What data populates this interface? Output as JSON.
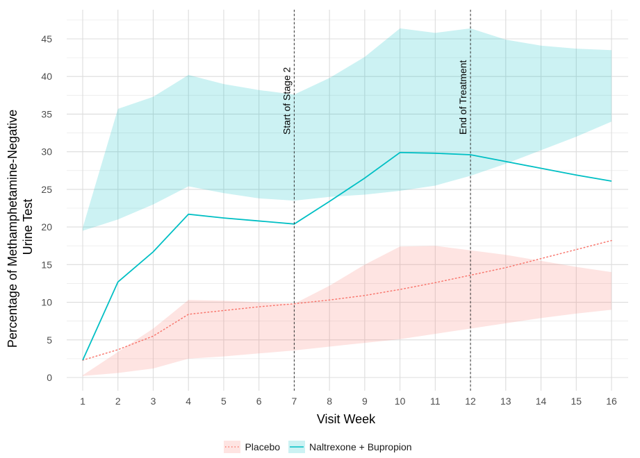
{
  "chart_data": {
    "type": "line",
    "xlabel": "Visit Week",
    "ylabel_lines": [
      "Percentage of Methamphetamine-Negative",
      "Urine Test"
    ],
    "x": [
      1,
      2,
      3,
      4,
      5,
      6,
      7,
      8,
      9,
      10,
      11,
      12,
      13,
      14,
      15,
      16
    ],
    "xlim": [
      1,
      16
    ],
    "ylim": [
      0,
      45
    ],
    "yticks": [
      0,
      5,
      10,
      15,
      20,
      25,
      30,
      35,
      40,
      45
    ],
    "xticks": [
      1,
      2,
      3,
      4,
      5,
      6,
      7,
      8,
      9,
      10,
      11,
      12,
      13,
      14,
      15,
      16
    ],
    "grid": true,
    "legend_position": "bottom",
    "series": [
      {
        "name": "Placebo",
        "color": "#F8766D",
        "line_style": "dotted",
        "values": [
          2.3,
          3.7,
          5.5,
          8.4,
          8.9,
          9.4,
          9.8,
          10.3,
          10.9,
          11.7,
          12.6,
          13.6,
          14.6,
          15.8,
          17.0,
          18.2
        ],
        "ci_lower": [
          0.2,
          0.6,
          1.2,
          2.5,
          2.8,
          3.2,
          3.6,
          4.1,
          4.6,
          5.1,
          5.8,
          6.5,
          7.2,
          7.9,
          8.5,
          9.0
        ],
        "ci_upper": [
          0.3,
          3.4,
          6.5,
          10.3,
          10.2,
          10.0,
          9.8,
          12.2,
          15.0,
          17.4,
          17.5,
          16.9,
          16.3,
          15.5,
          14.7,
          14.0
        ]
      },
      {
        "name": "Naltrexone + Bupropion",
        "color": "#00BFC4",
        "line_style": "solid",
        "values": [
          2.3,
          12.7,
          16.7,
          21.7,
          21.2,
          20.8,
          20.4,
          23.4,
          26.5,
          29.9,
          29.8,
          29.6,
          28.7,
          27.8,
          26.9,
          26.1
        ],
        "ci_lower": [
          19.5,
          21.0,
          23.0,
          25.4,
          24.5,
          23.8,
          23.5,
          24.0,
          24.3,
          24.8,
          25.5,
          26.8,
          28.4,
          30.2,
          32.0,
          34.0
        ],
        "ci_upper": [
          19.9,
          35.7,
          37.3,
          40.2,
          39.0,
          38.2,
          37.6,
          39.8,
          42.6,
          46.4,
          45.8,
          46.4,
          44.9,
          44.1,
          43.7,
          43.5
        ]
      }
    ],
    "annotations": [
      {
        "x": 7,
        "text": "Start of Stage 2"
      },
      {
        "x": 12,
        "text": "End of Treatment"
      }
    ]
  }
}
